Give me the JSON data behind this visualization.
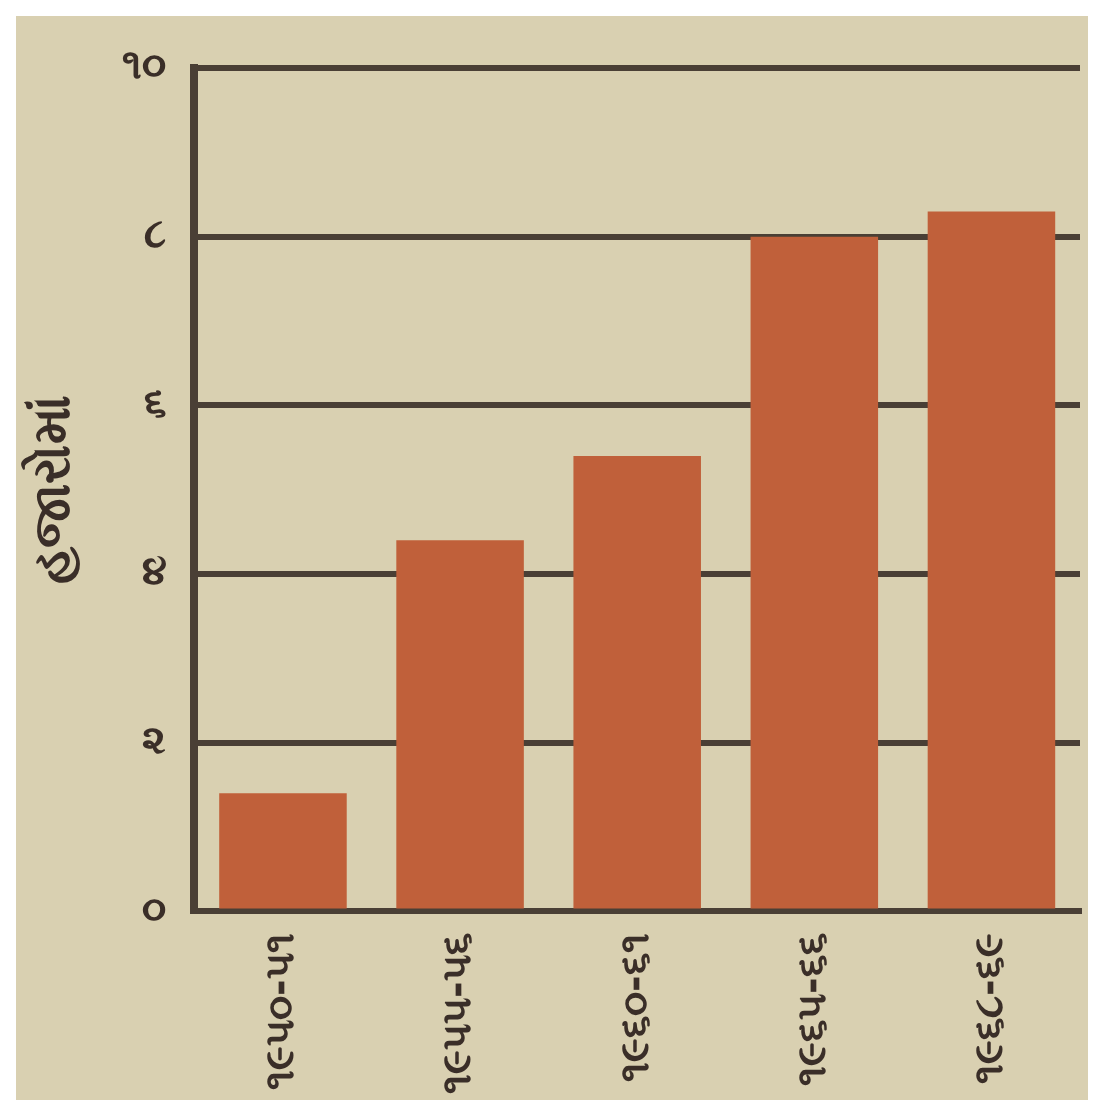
{
  "chart_data": {
    "type": "bar",
    "ylabel": "હજારોમાં",
    "categories": [
      "૧૯૫૦-૫૧",
      "૧૯૫૫-૫૬",
      "૧૯૬૦-૬૧",
      "૧૯૬૫-૬૬",
      "૧૯૬૮-૬૯"
    ],
    "values": [
      1.4,
      4.4,
      5.4,
      8.0,
      8.3
    ],
    "color": "#c0603a",
    "ylim": [
      0,
      10
    ],
    "yticks": [
      {
        "value": 0,
        "label": "૦"
      },
      {
        "value": 2,
        "label": "૨"
      },
      {
        "value": 4,
        "label": "૪"
      },
      {
        "value": 6,
        "label": "૬"
      },
      {
        "value": 8,
        "label": "૮"
      },
      {
        "value": 10,
        "label": "૧૦"
      }
    ],
    "grid": "y"
  }
}
